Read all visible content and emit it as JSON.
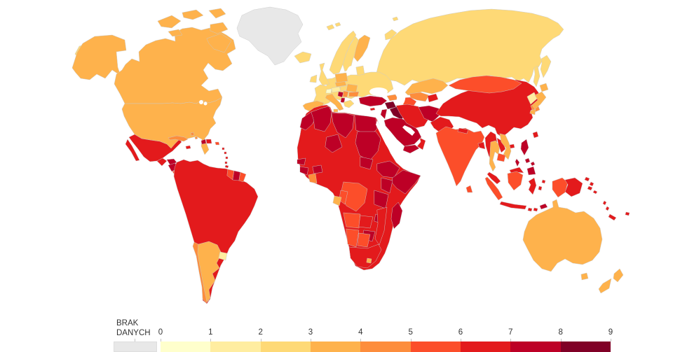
{
  "legend": {
    "no_data_label": "BRAK DANYCH",
    "ticks": [
      "0",
      "1",
      "2",
      "3",
      "4",
      "5",
      "6",
      "7",
      "8",
      "9"
    ],
    "scale_colors": [
      "#ffffcc",
      "#ffeda0",
      "#fed976",
      "#feb24c",
      "#fd8d3c",
      "#fc4e2a",
      "#e31a1c",
      "#bd0026",
      "#800026"
    ],
    "no_data_color": "#e8e8e8"
  },
  "map": {
    "water_color": "#ffffff",
    "border_color": "#c9c9c9",
    "regions": {
      "greenland": "nd",
      "canada": 3,
      "canada-arctic-islands": 3,
      "usa": 3,
      "alaska": 3,
      "chukotka": 2,
      "russia": 2,
      "novaya-zemlya": 2,
      "svalbard": 2,
      "kamchatka": 2,
      "sakhalin": 2,
      "mexico": 6,
      "guatemala": 6,
      "honduras": 7,
      "nicaragua": 7,
      "costa-rica": 5,
      "panama": 6,
      "cuba": 4,
      "bahamas": 4,
      "jamaica": 6,
      "haiti": 7,
      "dominican-republic": 6,
      "puerto-rico": 5,
      "lesser-antilles": 6,
      "south-america": 6,
      "guyana": 5,
      "suriname": 7,
      "french-guiana": 5,
      "chile": 4,
      "argentina": 3,
      "uruguay": 1,
      "iceland": 2,
      "ireland": 2,
      "uk": 2,
      "europe-mainland": 2,
      "norway": 2,
      "sweden": 2,
      "finland": 3,
      "denmark": 2,
      "baltics": 2,
      "spain-portugal": 3,
      "switzerland": 0,
      "austria": 1,
      "czech-slovakia": 3,
      "poland": 3,
      "hungary": 2,
      "romania": 3,
      "bulgaria": 4,
      "bosnia": 7,
      "serbia": 4,
      "albania": 7,
      "greece": 2,
      "italy": 3,
      "sicily": 3,
      "turkey": 7,
      "cyprus": 6,
      "kazakhstan": 3,
      "uzbekistan": 4,
      "turkmenistan": 5,
      "kyrgyzstan-tajikistan": 6,
      "caucasus": 4,
      "syria": 8,
      "iraq": 8,
      "jordan-israel": 7,
      "saudi-arabia": 7,
      "yemen": 7,
      "oman": 6,
      "iran": 6,
      "afghanistan": 7,
      "pakistan": 6,
      "india": 5,
      "nepal": 6,
      "bangladesh": 6,
      "sri-lanka": 5,
      "china": 6,
      "mongolia": 5,
      "taiwan": 6,
      "hainan": 6,
      "north-korea": 1,
      "south-korea": 4,
      "japan": 3,
      "myanmar": 6,
      "thailand": 3,
      "laos": 6,
      "vietnam": 3,
      "cambodia": 5,
      "malaysia": 6,
      "sumatra": 5,
      "borneo-malaysia": 6,
      "kalimantan": 5,
      "java": 6,
      "bali-lombok": 6,
      "timor": 7,
      "sulawesi": 6,
      "moluccas": 6,
      "new-guinea-west": 5,
      "papua-new-guinea": 6,
      "png-islands": 6,
      "philippines": 7,
      "palawan": 7,
      "solomon-islands": 6,
      "vanuatu": 6,
      "fiji": 6,
      "new-caledonia": 6,
      "australia": 3,
      "tasmania": 3,
      "new-zealand": 3,
      "africa-base": 6,
      "morocco": 7,
      "algeria": 7,
      "libya": 7,
      "egypt": 7,
      "niger": 7,
      "sudan": 7,
      "senegal": 7,
      "guinea": 7,
      "burkina-faso": 7,
      "ivory-coast": 4,
      "south-sudan": 7,
      "ethiopia": 7,
      "somalia": 7,
      "kenya": 7,
      "tanzania": 7,
      "drc": 5,
      "congo": 5,
      "gabon": 3,
      "angola": 5,
      "zambia": 6,
      "malawi": 7,
      "mozambique": 6,
      "zimbabwe": 7,
      "namibia": 5,
      "botswana": 5,
      "south-africa": 6,
      "lesotho": 3,
      "madagascar": 7
    }
  }
}
